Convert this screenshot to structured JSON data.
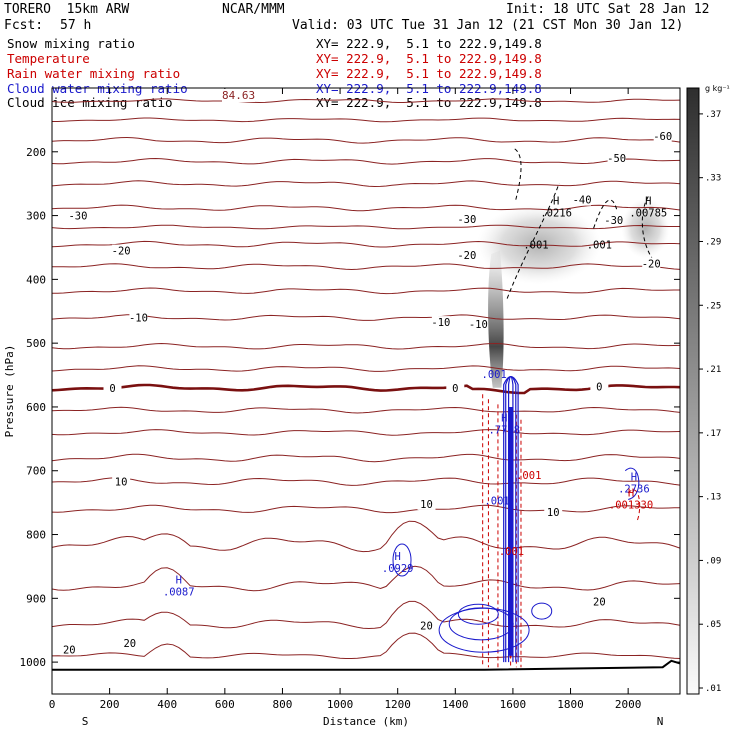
{
  "header": {
    "model": "TORERO  15km ARW",
    "center": "NCAR/MMM",
    "init": "Init: 18 UTC Sat 28 Jan 12",
    "fcst_label": "Fcst:",
    "fcst_value": "57 h",
    "valid": "Valid: 03 UTC Tue 31 Jan 12 (21 CST Mon 30 Jan 12)"
  },
  "legend": [
    {
      "name": "Snow mixing ratio",
      "xy": "XY= 222.9,  5.1 to 222.9,149.8",
      "color": "#000000"
    },
    {
      "name": "Temperature",
      "xy": "XY= 222.9,  5.1 to 222.9,149.8",
      "color": "#cc0000"
    },
    {
      "name": "Rain water mixing ratio",
      "xy": "XY= 222.9,  5.1 to 222.9,149.8",
      "color": "#cc0000"
    },
    {
      "name": "Cloud water mixing ratio",
      "xy": "XY= 222.9,  5.1 to 222.9,149.8",
      "color": "#1a1acc"
    },
    {
      "name": "Cloud ice mixing ratio",
      "xy": "XY= 222.9,  5.1 to 222.9,149.8",
      "color": "#000000"
    }
  ],
  "colors": {
    "temperature": "#8b2323",
    "zero_isotherm": "#7a1010",
    "rain": "#cc0000",
    "cloud_water": "#1a1acc",
    "cloud_ice": "#000000",
    "terrain": "#000000"
  },
  "chart_data": {
    "type": "contour-cross-section",
    "xlabel": "Distance (km)",
    "ylabel": "Pressure (hPa)",
    "xlim": [
      0,
      2180
    ],
    "ylim": [
      1050,
      100
    ],
    "x_ticks": [
      "0",
      "200",
      "400",
      "600",
      "800",
      "1000",
      "1200",
      "1400",
      "1600",
      "1800",
      "2000"
    ],
    "y_ticks": [
      "200",
      "300",
      "400",
      "500",
      "600",
      "700",
      "800",
      "900",
      "1000"
    ],
    "x_ends": [
      "S",
      "N"
    ],
    "top_annotation": "84.63",
    "colorbar": {
      "unit": "g kg⁻¹",
      "labels": [
        ".37",
        ".33",
        ".29",
        ".25",
        ".21",
        ".17",
        ".13",
        ".09",
        ".05",
        ".01"
      ],
      "range": [
        0.01,
        0.39
      ]
    },
    "temperature_labels": [
      {
        "text": "-60",
        "x": 2120,
        "p": 175
      },
      {
        "text": "-50",
        "x": 1960,
        "p": 210
      },
      {
        "text": "-40",
        "x": 1840,
        "p": 275
      },
      {
        "text": "-30",
        "x": 90,
        "p": 300
      },
      {
        "text": "-30",
        "x": 1440,
        "p": 305
      },
      {
        "text": "-30",
        "x": 1950,
        "p": 307
      },
      {
        "text": "-20",
        "x": 240,
        "p": 355
      },
      {
        "text": "-20",
        "x": 1440,
        "p": 362
      },
      {
        "text": "-20",
        "x": 2080,
        "p": 375
      },
      {
        "text": "-10",
        "x": 300,
        "p": 460
      },
      {
        "text": "-10",
        "x": 1350,
        "p": 467
      },
      {
        "text": "-10",
        "x": 1480,
        "p": 470
      },
      {
        "text": "0",
        "x": 210,
        "p": 570
      },
      {
        "text": "0",
        "x": 1400,
        "p": 570
      },
      {
        "text": "0",
        "x": 1900,
        "p": 568
      },
      {
        "text": "10",
        "x": 240,
        "p": 717
      },
      {
        "text": "10",
        "x": 1300,
        "p": 752
      },
      {
        "text": "10",
        "x": 1740,
        "p": 765
      },
      {
        "text": "20",
        "x": 60,
        "p": 980
      },
      {
        "text": "20",
        "x": 270,
        "p": 970
      },
      {
        "text": "20",
        "x": 1300,
        "p": 943
      },
      {
        "text": "20",
        "x": 1900,
        "p": 905
      }
    ],
    "maxima_labels": [
      {
        "h": "H",
        "value": ".0216",
        "x": 1750,
        "p": 283,
        "color": "#000000"
      },
      {
        "h": "H",
        "value": ".00785",
        "x": 2070,
        "p": 283,
        "color": "#000000"
      },
      {
        "h": "H",
        "value": ".0087",
        "x": 440,
        "p": 877,
        "color": "#1a1acc"
      },
      {
        "h": "H",
        "value": ".0929",
        "x": 1200,
        "p": 840,
        "color": "#1a1acc"
      },
      {
        "h": "H",
        "value": ".7758",
        "x": 1570,
        "p": 623,
        "color": "#1a1acc"
      },
      {
        "h": "H",
        "value": ".2736",
        "x": 2020,
        "p": 715,
        "color": "#1a1acc"
      },
      {
        "h": "H",
        "value": ".001330",
        "x": 2010,
        "p": 740,
        "color": "#cc0000"
      }
    ],
    "point_labels": [
      {
        "text": ".001",
        "x": 1680,
        "p": 352,
        "color": "#000000"
      },
      {
        "text": ".001",
        "x": 1900,
        "p": 352,
        "color": "#000000"
      },
      {
        "text": ".001",
        "x": 1535,
        "p": 555,
        "color": "#1a1acc"
      },
      {
        "text": ".001",
        "x": 1655,
        "p": 713,
        "color": "#cc0000"
      },
      {
        "text": ".001",
        "x": 1545,
        "p": 753,
        "color": "#1a1acc"
      },
      {
        "text": ".001",
        "x": 1595,
        "p": 832,
        "color": "#cc0000"
      }
    ]
  }
}
